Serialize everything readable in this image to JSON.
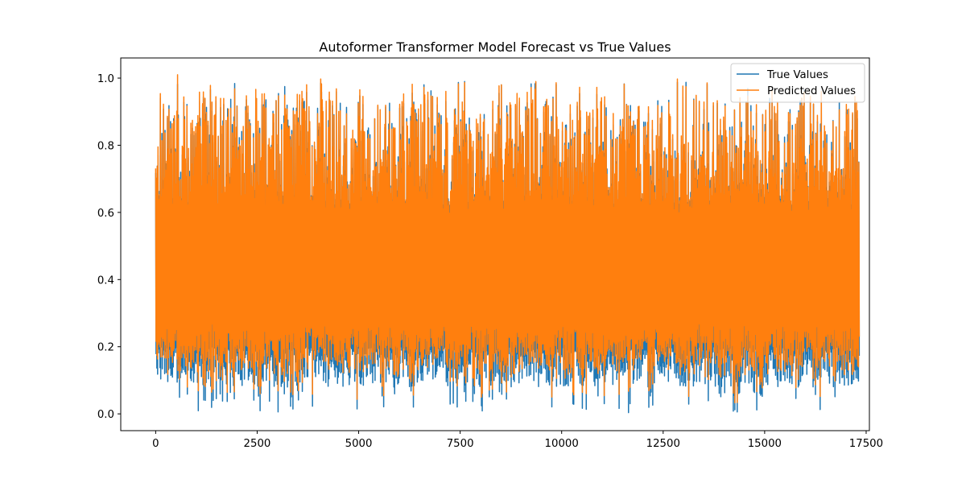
{
  "chart_data": {
    "type": "line",
    "title": "Autoformer Transformer Model Forecast vs True Values",
    "xlabel": "",
    "ylabel": "",
    "xlim": [
      -860,
      17580
    ],
    "ylim": [
      -0.05,
      1.06
    ],
    "x_ticks": [
      0,
      2500,
      5000,
      7500,
      10000,
      12500,
      15000,
      17500
    ],
    "x_tick_labels": [
      "0",
      "2500",
      "5000",
      "7500",
      "10000",
      "12500",
      "15000",
      "17500"
    ],
    "y_ticks": [
      0.0,
      0.2,
      0.4,
      0.6,
      0.8,
      1.0
    ],
    "y_tick_labels": [
      "0.0",
      "0.2",
      "0.4",
      "0.6",
      "0.8",
      "1.0"
    ],
    "x_range": [
      0,
      17330
    ],
    "grid": false,
    "legend_position": "upper-right",
    "series": [
      {
        "name": "True Values",
        "color": "#1f77b4",
        "sample_x": [
          0,
          1000,
          2000,
          3000,
          4000,
          5000,
          6000,
          7000,
          8000,
          9000,
          10000,
          11000,
          12000,
          13000,
          14000,
          15000,
          16000,
          17000
        ],
        "sample_y": [
          0.42,
          0.35,
          0.4,
          0.38,
          0.33,
          0.41,
          0.36,
          0.39,
          0.34,
          0.4,
          0.37,
          0.38,
          0.35,
          0.41,
          0.36,
          0.39,
          0.37,
          0.4
        ],
        "min": 0.0,
        "max": 0.99
      },
      {
        "name": "Predicted Values",
        "color": "#ff7f0e",
        "sample_x": [
          0,
          1000,
          2000,
          3000,
          4000,
          5000,
          6000,
          7000,
          8000,
          9000,
          10000,
          11000,
          12000,
          13000,
          14000,
          15000,
          16000,
          17000
        ],
        "sample_y": [
          0.42,
          0.36,
          0.4,
          0.38,
          0.34,
          0.41,
          0.37,
          0.39,
          0.35,
          0.4,
          0.37,
          0.38,
          0.36,
          0.41,
          0.37,
          0.39,
          0.37,
          0.4
        ],
        "min": 0.02,
        "max": 1.01
      }
    ]
  }
}
